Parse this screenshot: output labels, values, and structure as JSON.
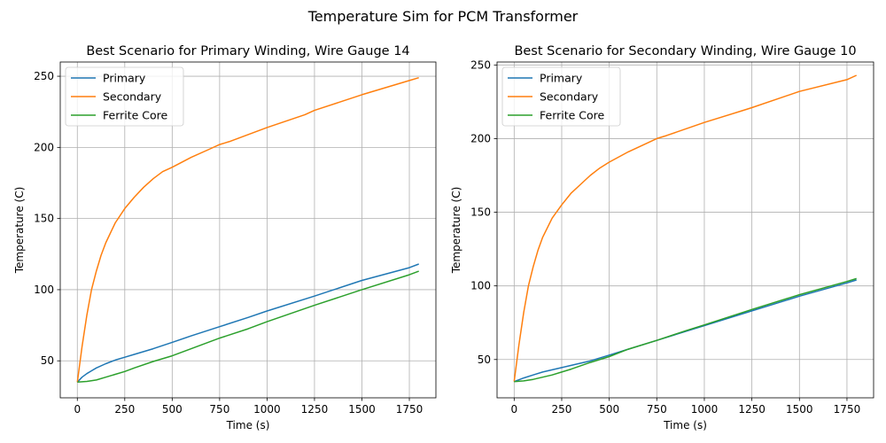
{
  "suptitle": "Temperature Sim for PCM Transformer",
  "chart_data": [
    {
      "type": "line",
      "title": "Best Scenario for Primary Winding, Wire Gauge 14",
      "xlabel": "Time (s)",
      "ylabel": "Temperature (C)",
      "xlim": [
        -90,
        1890
      ],
      "ylim": [
        24,
        260
      ],
      "xticks": [
        0,
        250,
        500,
        750,
        1000,
        1250,
        1500,
        1750
      ],
      "yticks": [
        50,
        100,
        150,
        200,
        250
      ],
      "grid": true,
      "legend_position": "upper-left",
      "series": [
        {
          "name": "Primary",
          "color": "#1f77b4",
          "x": [
            0,
            25,
            50,
            75,
            100,
            150,
            200,
            250,
            300,
            400,
            500,
            600,
            750,
            900,
            1000,
            1250,
            1500,
            1750,
            1800
          ],
          "y": [
            35,
            38.5,
            41,
            43,
            45,
            48,
            50.5,
            52.5,
            54.5,
            58.5,
            63,
            67.5,
            74,
            80.5,
            85,
            95.5,
            106.5,
            115.5,
            118
          ]
        },
        {
          "name": "Secondary",
          "color": "#ff7f0e",
          "x": [
            0,
            25,
            50,
            75,
            100,
            125,
            150,
            200,
            250,
            300,
            350,
            400,
            450,
            500,
            600,
            700,
            750,
            800,
            1000,
            1200,
            1250,
            1500,
            1750,
            1800
          ],
          "y": [
            35,
            60,
            82,
            100,
            113,
            124,
            133,
            147,
            157,
            165,
            172,
            178,
            183,
            186,
            193,
            199,
            202,
            204,
            214,
            223,
            226,
            237,
            247,
            249
          ]
        },
        {
          "name": "Ferrite Core",
          "color": "#2ca02c",
          "x": [
            0,
            50,
            100,
            150,
            200,
            250,
            300,
            400,
            500,
            600,
            750,
            900,
            1000,
            1250,
            1500,
            1750,
            1800
          ],
          "y": [
            35,
            35.5,
            36.5,
            38.5,
            40.5,
            42.5,
            45,
            49.5,
            53.5,
            58.5,
            66,
            72.5,
            77.5,
            89,
            100,
            110.5,
            113
          ]
        }
      ]
    },
    {
      "type": "line",
      "title": "Best Scenario for Secondary Winding, Wire Gauge 10",
      "xlabel": "Time (s)",
      "ylabel": "Temperature (C)",
      "xlim": [
        -90,
        1890
      ],
      "ylim": [
        24,
        252
      ],
      "xticks": [
        0,
        250,
        500,
        750,
        1000,
        1250,
        1500,
        1750
      ],
      "yticks": [
        50,
        100,
        150,
        200,
        250
      ],
      "grid": true,
      "legend_position": "upper-left",
      "series": [
        {
          "name": "Primary",
          "color": "#1f77b4",
          "x": [
            0,
            50,
            100,
            150,
            200,
            250,
            300,
            400,
            500,
            600,
            750,
            900,
            1000,
            1250,
            1500,
            1750,
            1800
          ],
          "y": [
            35,
            37.5,
            39.5,
            41.5,
            43,
            44.5,
            46,
            49,
            53,
            57,
            63,
            69,
            73,
            83,
            93,
            102,
            104
          ]
        },
        {
          "name": "Secondary",
          "color": "#ff7f0e",
          "x": [
            0,
            25,
            50,
            75,
            100,
            125,
            150,
            200,
            250,
            300,
            350,
            400,
            450,
            500,
            600,
            700,
            750,
            800,
            1000,
            1200,
            1250,
            1500,
            1750,
            1800
          ],
          "y": [
            35,
            60,
            82,
            100,
            113,
            124,
            133,
            146,
            155,
            163,
            169,
            175,
            180,
            184,
            191,
            197,
            200,
            202,
            211,
            219,
            221,
            232,
            240,
            243
          ]
        },
        {
          "name": "Ferrite Core",
          "color": "#2ca02c",
          "x": [
            0,
            50,
            100,
            150,
            200,
            250,
            300,
            400,
            500,
            600,
            750,
            900,
            1000,
            1250,
            1500,
            1750,
            1800
          ],
          "y": [
            35,
            35.5,
            36.5,
            38,
            39.5,
            41.5,
            43.5,
            48,
            52,
            57,
            63,
            69.5,
            73.5,
            84,
            94,
            103,
            105
          ]
        }
      ]
    }
  ]
}
